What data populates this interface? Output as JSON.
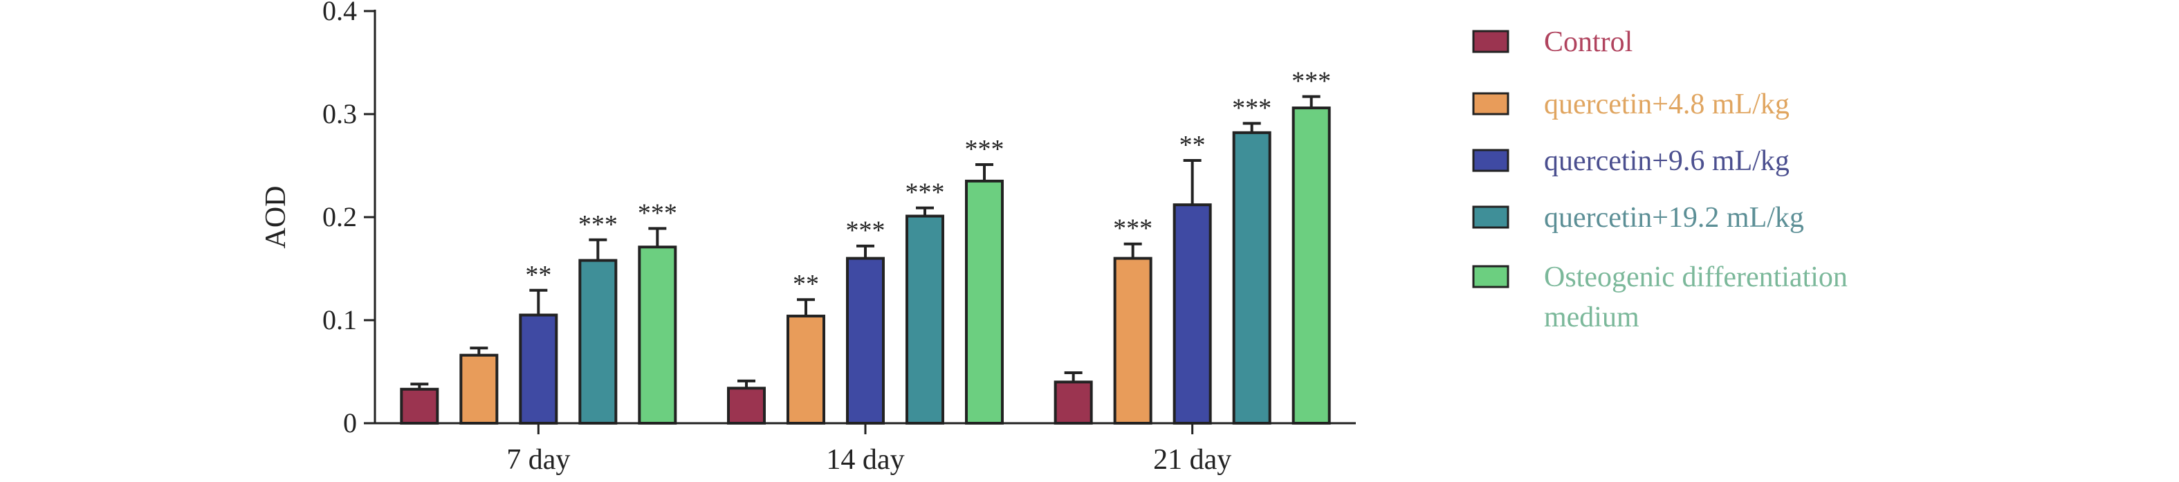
{
  "chart_data": {
    "type": "bar",
    "ylabel": "AOD",
    "xlabel": "",
    "ylim": [
      0,
      0.4
    ],
    "yticks": [
      "0",
      "0.1",
      "0.2",
      "0.3",
      "0.4"
    ],
    "categories": [
      "7 day",
      "14 day",
      "21 day"
    ],
    "legend_position": "right",
    "series": [
      {
        "name": "Control",
        "color": "#9b3450",
        "values": [
          0.033,
          0.034,
          0.04
        ],
        "errors": [
          0.005,
          0.007,
          0.009
        ],
        "significance": [
          "",
          "",
          ""
        ]
      },
      {
        "name": "quercetin+4.8 mL/kg",
        "color": "#e89c5a",
        "values": [
          0.066,
          0.104,
          0.16
        ],
        "errors": [
          0.007,
          0.016,
          0.014
        ],
        "significance": [
          "",
          "**",
          "***"
        ]
      },
      {
        "name": "quercetin+9.6 mL/kg",
        "color": "#3f4aa3",
        "values": [
          0.105,
          0.16,
          0.212
        ],
        "errors": [
          0.024,
          0.012,
          0.043
        ],
        "significance": [
          "**",
          "***",
          "**"
        ]
      },
      {
        "name": "quercetin+19.2 mL/kg",
        "color": "#3f8f98",
        "values": [
          0.158,
          0.201,
          0.282
        ],
        "errors": [
          0.02,
          0.008,
          0.009
        ],
        "significance": [
          "***",
          "***",
          "***"
        ]
      },
      {
        "name": "Osteogenic differentiation medium",
        "color": "#6ccf80",
        "values": [
          0.171,
          0.235,
          0.306
        ],
        "errors": [
          0.018,
          0.016,
          0.011
        ],
        "significance": [
          "***",
          "***",
          "***"
        ]
      }
    ],
    "legend_label_lines": [
      [
        "Control"
      ],
      [
        "quercetin+4.8 mL/kg"
      ],
      [
        "quercetin+9.6 mL/kg"
      ],
      [
        "quercetin+19.2 mL/kg"
      ],
      [
        "Osteogenic differentiation",
        "medium"
      ]
    ],
    "legend_text_colors": [
      "#b0435e",
      "#e0a560",
      "#4b4f8f",
      "#5c8f96",
      "#7bb89a"
    ]
  }
}
